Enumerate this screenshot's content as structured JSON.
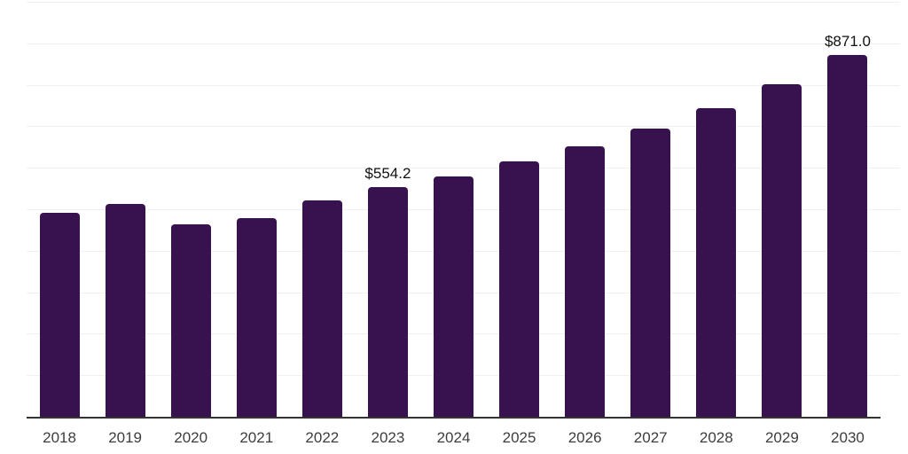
{
  "chart_data": {
    "type": "bar",
    "categories": [
      "2018",
      "2019",
      "2020",
      "2021",
      "2022",
      "2023",
      "2024",
      "2025",
      "2026",
      "2027",
      "2028",
      "2029",
      "2030"
    ],
    "values": [
      492,
      513,
      464,
      478,
      522,
      554.2,
      580,
      615,
      651,
      695,
      744,
      801,
      871
    ],
    "value_labels": {
      "2023": "$554.2",
      "2030": "$871.0"
    },
    "ylim": [
      0,
      1000
    ],
    "grid": {
      "visible": true,
      "interval": 100
    },
    "legend": "none",
    "colors": {
      "bar": "#38124E",
      "axis_line": "#333333",
      "gridline": "#f0f0f0",
      "tick_label": "#3d3d3d",
      "value_label": "#111111",
      "background": "#ffffff"
    }
  }
}
